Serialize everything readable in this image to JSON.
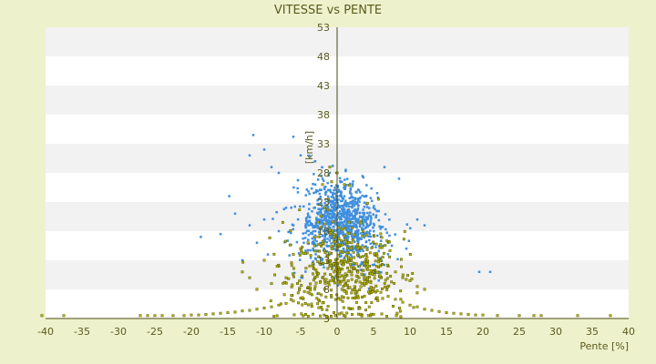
{
  "colors": {
    "background": "#eef2cc",
    "plot_band_light": "#ffffff",
    "plot_band_dark": "#f2f2f2",
    "axis": "#4a4a14",
    "series_blue": "#3f8fde",
    "series_olive": "#b8b800",
    "series_olive_edge": "#5a5a00",
    "text": "#5a5a1e"
  },
  "chart_data": {
    "type": "scatter",
    "title": "VITESSE vs PENTE",
    "xlabel": "Pente [%]",
    "ylabel": "[km/h]",
    "xlim": [
      -40,
      40
    ],
    "ylim": [
      3,
      53
    ],
    "x_ticks": [
      "-40",
      "-35",
      "-30",
      "-25",
      "-20",
      "-15",
      "-10",
      "-5",
      "0",
      "5",
      "10",
      "15",
      "20",
      "25",
      "30",
      "35",
      "40"
    ],
    "y_ticks": [
      "3",
      "8",
      "13",
      "18",
      "23",
      "28",
      "33",
      "38",
      "43",
      "48",
      "53"
    ],
    "grid": "horizontal alternating bands",
    "legend": "none",
    "series": [
      {
        "color": "#3f8fde",
        "points": [
          [
            -11.5,
            34.5
          ],
          [
            -6,
            34.2
          ],
          [
            -10,
            32
          ],
          [
            -12,
            31
          ],
          [
            -5,
            31
          ],
          [
            -3,
            30
          ],
          [
            -9,
            29
          ],
          [
            -8,
            28
          ],
          [
            -1,
            28
          ],
          [
            -14.8,
            24
          ],
          [
            -16,
            17.5
          ],
          [
            -18.7,
            17
          ],
          [
            -14,
            21
          ],
          [
            -12,
            19
          ],
          [
            -10,
            20
          ],
          [
            -7,
            22
          ],
          [
            -3,
            26
          ],
          [
            -2,
            27
          ],
          [
            3,
            25
          ],
          [
            4,
            24
          ],
          [
            6.5,
            29
          ],
          [
            8.5,
            27
          ],
          [
            11,
            20
          ],
          [
            12,
            19
          ],
          [
            19.5,
            11
          ],
          [
            21,
            11
          ],
          [
            9.5,
            15
          ],
          [
            5,
            22
          ],
          [
            2,
            21
          ],
          [
            -4,
            21
          ],
          [
            -6,
            19
          ],
          [
            -8,
            18
          ],
          [
            -11,
            16
          ],
          [
            -13,
            13
          ],
          [
            -9.5,
            14
          ],
          [
            6,
            17
          ],
          [
            7,
            16
          ],
          [
            3,
            14
          ],
          [
            0,
            23
          ],
          [
            1,
            24
          ],
          [
            -2.5,
            23.5
          ],
          [
            2.5,
            23
          ]
        ],
        "cluster": {
          "cx": 0.5,
          "cy": 20,
          "sx": 2.8,
          "sy": 3.5,
          "n": 900
        }
      },
      {
        "color": "#b8b800",
        "points": [
          [
            -40.5,
            3.5
          ],
          [
            -37.5,
            3.5
          ],
          [
            -27,
            3.5
          ],
          [
            -26,
            3.5
          ],
          [
            -25,
            3.5
          ],
          [
            -24,
            3.5
          ],
          [
            -22.5,
            3.5
          ],
          [
            -21,
            3.5
          ],
          [
            -20,
            3.6
          ],
          [
            -19,
            3.6
          ],
          [
            -18,
            3.7
          ],
          [
            -17,
            3.8
          ],
          [
            -16,
            3.9
          ],
          [
            -15,
            4
          ],
          [
            -14,
            4.1
          ],
          [
            -13,
            4.3
          ],
          [
            -12,
            4.4
          ],
          [
            -11,
            4.6
          ],
          [
            -10,
            4.8
          ],
          [
            -9,
            5
          ],
          [
            -8,
            5.3
          ],
          [
            -7,
            5.6
          ],
          [
            -6,
            6
          ],
          [
            -5,
            6.5
          ],
          [
            -4,
            7.5
          ],
          [
            -3,
            8.5
          ],
          [
            -2,
            10
          ],
          [
            -1,
            12
          ],
          [
            0,
            15
          ],
          [
            1,
            13
          ],
          [
            2,
            11
          ],
          [
            3,
            10
          ],
          [
            4,
            9
          ],
          [
            5,
            8.2
          ],
          [
            6,
            7.5
          ],
          [
            7,
            6.8
          ],
          [
            8,
            6.3
          ],
          [
            9,
            5.8
          ],
          [
            10,
            5.3
          ],
          [
            11,
            5
          ],
          [
            12,
            4.6
          ],
          [
            13,
            4.4
          ],
          [
            14,
            4.2
          ],
          [
            15,
            4
          ],
          [
            16,
            3.9
          ],
          [
            17,
            3.8
          ],
          [
            18,
            3.7
          ],
          [
            19,
            3.6
          ],
          [
            20,
            3.6
          ],
          [
            22,
            3.5
          ],
          [
            25,
            3.5
          ],
          [
            27,
            3.5
          ],
          [
            28,
            3.5
          ],
          [
            33,
            3.5
          ],
          [
            37.5,
            3.5
          ],
          [
            -1,
            29
          ],
          [
            0,
            28
          ],
          [
            -2,
            26
          ],
          [
            1,
            26
          ],
          [
            -13,
            11
          ],
          [
            -12,
            10
          ],
          [
            -10,
            13
          ],
          [
            -8,
            12
          ],
          [
            -9,
            9
          ],
          [
            -11,
            8
          ],
          [
            -7,
            10
          ],
          [
            -6,
            14
          ],
          [
            8,
            11
          ],
          [
            9,
            10
          ],
          [
            10,
            9.5
          ],
          [
            11,
            8.5
          ],
          [
            12,
            8
          ],
          [
            7,
            12
          ],
          [
            6,
            13
          ],
          [
            4,
            14
          ],
          [
            3,
            15
          ],
          [
            2,
            16
          ],
          [
            -3,
            17
          ],
          [
            -4,
            16
          ],
          [
            -5,
            15
          ]
        ],
        "cluster": {
          "cx": 1,
          "cy": 12,
          "sx": 4,
          "sy": 4.5,
          "n": 500
        }
      }
    ]
  }
}
